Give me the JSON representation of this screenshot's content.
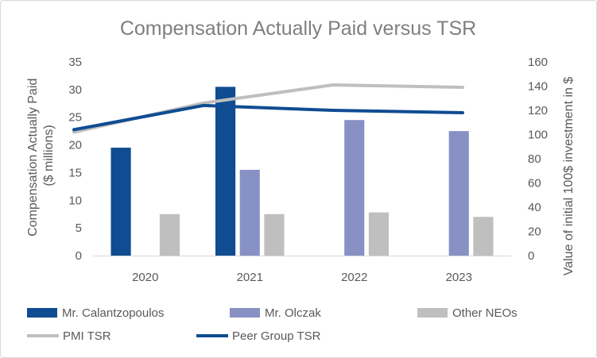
{
  "chart_data": {
    "type": "bar",
    "title": "Compensation Actually Paid versus TSR",
    "categories": [
      "2020",
      "2021",
      "2022",
      "2023"
    ],
    "ylabel_left": [
      "Compensation Actually Paid",
      "($ millions)"
    ],
    "ylabel_right": "Value of initial 100$ investment in $",
    "ylim_left": [
      0,
      35
    ],
    "yticks_left": [
      0,
      5,
      10,
      15,
      20,
      25,
      30,
      35
    ],
    "ylim_right": [
      0,
      160
    ],
    "yticks_right": [
      0,
      20,
      40,
      60,
      80,
      100,
      120,
      140,
      160
    ],
    "grid": false,
    "legend_position": "bottom",
    "series": [
      {
        "name": "Mr. Calantzopoulos",
        "kind": "bar",
        "axis": "left",
        "color": "#0f4c92",
        "values": [
          19.5,
          30.5,
          null,
          null
        ]
      },
      {
        "name": "Mr. Olczak",
        "kind": "bar",
        "axis": "left",
        "color": "#8891c4",
        "values": [
          null,
          15.5,
          24.5,
          22.5
        ]
      },
      {
        "name": "Other NEOs",
        "kind": "bar",
        "axis": "left",
        "color": "#bfbfbf",
        "values": [
          7.5,
          7.5,
          7.8,
          7.0
        ]
      },
      {
        "name": "PMI TSR",
        "kind": "line",
        "axis": "right",
        "color": "#bfbfbf",
        "values": [
          102,
          126,
          141,
          139
        ]
      },
      {
        "name": "Peer Group TSR",
        "kind": "line",
        "axis": "right",
        "color": "#0f4c92",
        "values": [
          104,
          124,
          120,
          118
        ]
      }
    ]
  }
}
